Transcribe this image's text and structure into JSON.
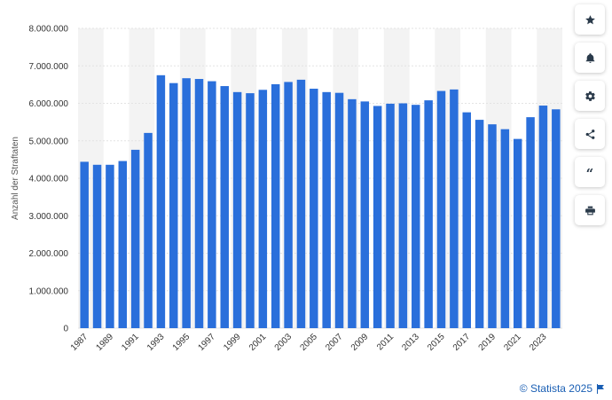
{
  "toolbar": {
    "buttons": [
      {
        "icon": "star-icon",
        "name": "favorite-button"
      },
      {
        "icon": "bell-icon",
        "name": "notification-button"
      },
      {
        "icon": "gear-icon",
        "name": "settings-button"
      },
      {
        "icon": "share-icon",
        "name": "share-button"
      },
      {
        "icon": "quote-icon",
        "name": "cite-button"
      },
      {
        "icon": "print-icon",
        "name": "print-button"
      }
    ],
    "quote_glyph": "“"
  },
  "footer": {
    "credit": "© Statista 2025",
    "flag_icon": "flag-icon"
  },
  "colors": {
    "bar": "#2a6fdb",
    "band": "#f3f3f3",
    "grid": "#e3e3e3",
    "link": "#1a5fb4"
  },
  "chart_data": {
    "type": "bar",
    "categories": [
      "1987",
      "1988",
      "1989",
      "1990",
      "1991",
      "1992",
      "1993",
      "1994",
      "1995",
      "1996",
      "1997",
      "1998",
      "1999",
      "2000",
      "2001",
      "2002",
      "2003",
      "2004",
      "2005",
      "2006",
      "2007",
      "2008",
      "2009",
      "2010",
      "2011",
      "2012",
      "2013",
      "2014",
      "2015",
      "2016",
      "2017",
      "2018",
      "2019",
      "2020",
      "2021",
      "2022",
      "2023",
      "2024"
    ],
    "x_tick_labels": [
      "1987",
      "1989",
      "1991",
      "1993",
      "1995",
      "1997",
      "1999",
      "2001",
      "2003",
      "2005",
      "2007",
      "2009",
      "2011",
      "2013",
      "2015",
      "2017",
      "2019",
      "2021",
      "2023"
    ],
    "values": [
      4440000,
      4360000,
      4360000,
      4460000,
      4760000,
      5210000,
      6750000,
      6540000,
      6670000,
      6650000,
      6590000,
      6460000,
      6300000,
      6270000,
      6360000,
      6510000,
      6570000,
      6630000,
      6390000,
      6300000,
      6280000,
      6110000,
      6050000,
      5930000,
      5990000,
      6000000,
      5960000,
      6080000,
      6330000,
      6370000,
      5760000,
      5560000,
      5440000,
      5310000,
      5050000,
      5630000,
      5940000,
      5840000
    ],
    "ylabel": "Anzahl der Straftaten",
    "xlabel": "",
    "ylim": [
      0,
      8000000
    ],
    "y_ticks": [
      0,
      1000000,
      2000000,
      3000000,
      4000000,
      5000000,
      6000000,
      7000000,
      8000000
    ],
    "y_tick_labels": [
      "0",
      "1.000.000",
      "2.000.000",
      "3.000.000",
      "4.000.000",
      "5.000.000",
      "6.000.000",
      "7.000.000",
      "8.000.000"
    ],
    "grid": true
  }
}
